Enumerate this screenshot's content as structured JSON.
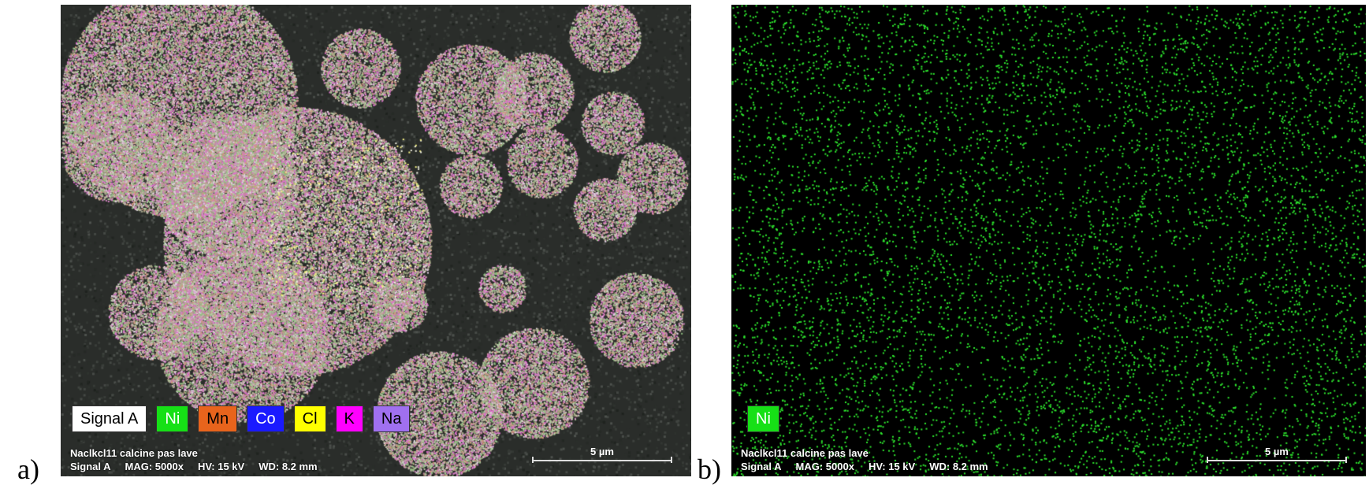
{
  "panel_a": {
    "letter": "a)",
    "legend": [
      {
        "label": "Signal A",
        "bg": "#ffffff",
        "fg": "#000000"
      },
      {
        "label": "Ni",
        "bg": "#16e016",
        "fg": "#ffffff"
      },
      {
        "label": "Mn",
        "bg": "#e8641c",
        "fg": "#000000"
      },
      {
        "label": "Co",
        "bg": "#1a1aff",
        "fg": "#ffffff"
      },
      {
        "label": "Cl",
        "bg": "#ffff00",
        "fg": "#000000"
      },
      {
        "label": "K",
        "bg": "#ff00ff",
        "fg": "#000000"
      },
      {
        "label": "Na",
        "bg": "#a070f0",
        "fg": "#000000"
      }
    ],
    "caption_line1": "Naclkcl11 calcine pas lave",
    "caption_signal": "Signal A",
    "caption_mag": "MAG: 5000x",
    "caption_hv": "HV: 15 kV",
    "caption_wd": "WD: 8.2 mm",
    "scale_label": "5 µm"
  },
  "panel_b": {
    "letter": "b)",
    "legend": [
      {
        "label": "Ni",
        "bg": "#16e016",
        "fg": "#ffffff"
      }
    ],
    "caption_line1": "Naclkcl11 calcine pas lave",
    "caption_signal": "Signal A",
    "caption_mag": "MAG: 5000x",
    "caption_hv": "HV: 15 kV",
    "caption_wd": "WD: 8.2 mm",
    "scale_label": "5 µm",
    "dot_color": "#2ee82e"
  }
}
